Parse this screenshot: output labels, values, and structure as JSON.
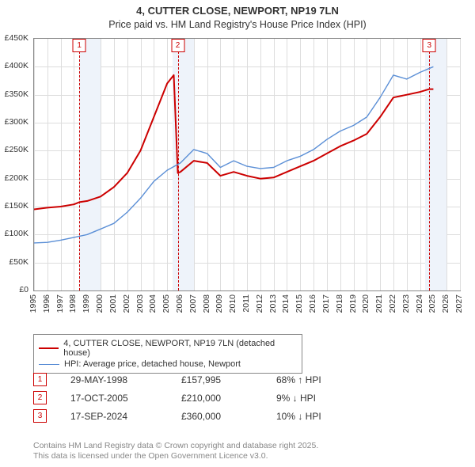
{
  "title_line1": "4, CUTTER CLOSE, NEWPORT, NP19 7LN",
  "title_line2": "Price paid vs. HM Land Registry's House Price Index (HPI)",
  "chart": {
    "type": "line",
    "x_domain": [
      1995,
      2027
    ],
    "y_domain": [
      0,
      450000
    ],
    "y_tick_step": 50000,
    "y_format_prefix": "£",
    "y_format_suffix": "K",
    "y_format_divisor": 1000,
    "grid_color": "#dddddd",
    "border_color": "#888888",
    "background_color": "#ffffff",
    "label_fontsize": 10.5,
    "shaded_bands": [
      {
        "x_start": 1998.4,
        "x_end": 2000.0,
        "color": "#eef3fa"
      },
      {
        "x_start": 2005.4,
        "x_end": 2007.0,
        "color": "#eef3fa"
      },
      {
        "x_start": 2024.4,
        "x_end": 2026.0,
        "color": "#eef3fa"
      }
    ],
    "series": [
      {
        "name": "4, CUTTER CLOSE, NEWPORT, NP19 7LN (detached house)",
        "color": "#cc0000",
        "width": 2,
        "points": [
          [
            1995,
            145000
          ],
          [
            1996,
            148000
          ],
          [
            1997,
            150000
          ],
          [
            1998,
            154000
          ],
          [
            1998.4,
            157995
          ],
          [
            1999,
            160000
          ],
          [
            2000,
            168000
          ],
          [
            2001,
            185000
          ],
          [
            2002,
            210000
          ],
          [
            2003,
            250000
          ],
          [
            2004,
            310000
          ],
          [
            2005,
            370000
          ],
          [
            2005.5,
            385000
          ],
          [
            2005.8,
            210000
          ],
          [
            2006,
            212000
          ],
          [
            2007,
            232000
          ],
          [
            2008,
            228000
          ],
          [
            2009,
            205000
          ],
          [
            2010,
            212000
          ],
          [
            2011,
            205000
          ],
          [
            2012,
            200000
          ],
          [
            2013,
            202000
          ],
          [
            2014,
            212000
          ],
          [
            2015,
            222000
          ],
          [
            2016,
            232000
          ],
          [
            2017,
            245000
          ],
          [
            2018,
            258000
          ],
          [
            2019,
            268000
          ],
          [
            2020,
            280000
          ],
          [
            2021,
            310000
          ],
          [
            2022,
            345000
          ],
          [
            2023,
            350000
          ],
          [
            2024,
            355000
          ],
          [
            2024.7,
            360000
          ],
          [
            2025,
            360000
          ]
        ]
      },
      {
        "name": "HPI: Average price, detached house, Newport",
        "color": "#5b8fd6",
        "width": 1.4,
        "points": [
          [
            1995,
            85000
          ],
          [
            1996,
            86000
          ],
          [
            1997,
            90000
          ],
          [
            1998,
            95000
          ],
          [
            1999,
            100000
          ],
          [
            2000,
            110000
          ],
          [
            2001,
            120000
          ],
          [
            2002,
            140000
          ],
          [
            2003,
            165000
          ],
          [
            2004,
            195000
          ],
          [
            2005,
            215000
          ],
          [
            2006,
            228000
          ],
          [
            2007,
            252000
          ],
          [
            2008,
            245000
          ],
          [
            2009,
            220000
          ],
          [
            2010,
            232000
          ],
          [
            2011,
            222000
          ],
          [
            2012,
            218000
          ],
          [
            2013,
            220000
          ],
          [
            2014,
            232000
          ],
          [
            2015,
            240000
          ],
          [
            2016,
            252000
          ],
          [
            2017,
            270000
          ],
          [
            2018,
            285000
          ],
          [
            2019,
            295000
          ],
          [
            2020,
            310000
          ],
          [
            2021,
            345000
          ],
          [
            2022,
            385000
          ],
          [
            2023,
            378000
          ],
          [
            2024,
            390000
          ],
          [
            2025,
            400000
          ]
        ]
      }
    ],
    "markers": [
      {
        "n": "1",
        "x": 1998.4,
        "color": "#cc0000"
      },
      {
        "n": "2",
        "x": 2005.8,
        "color": "#cc0000"
      },
      {
        "n": "3",
        "x": 2024.7,
        "color": "#cc0000"
      }
    ]
  },
  "legend": {
    "border_color": "#888888",
    "items": [
      {
        "color": "#cc0000",
        "width": 2,
        "label": "4, CUTTER CLOSE, NEWPORT, NP19 7LN (detached house)"
      },
      {
        "color": "#5b8fd6",
        "width": 1.4,
        "label": "HPI: Average price, detached house, Newport"
      }
    ]
  },
  "transactions": [
    {
      "n": "1",
      "date": "29-MAY-1998",
      "price": "£157,995",
      "delta": "68% ↑ HPI",
      "color": "#cc0000"
    },
    {
      "n": "2",
      "date": "17-OCT-2005",
      "price": "£210,000",
      "delta": "9% ↓ HPI",
      "color": "#cc0000"
    },
    {
      "n": "3",
      "date": "17-SEP-2024",
      "price": "£360,000",
      "delta": "10% ↓ HPI",
      "color": "#cc0000"
    }
  ],
  "footnote_line1": "Contains HM Land Registry data © Crown copyright and database right 2025.",
  "footnote_line2": "This data is licensed under the Open Government Licence v3.0.",
  "footnote_color": "#888888"
}
